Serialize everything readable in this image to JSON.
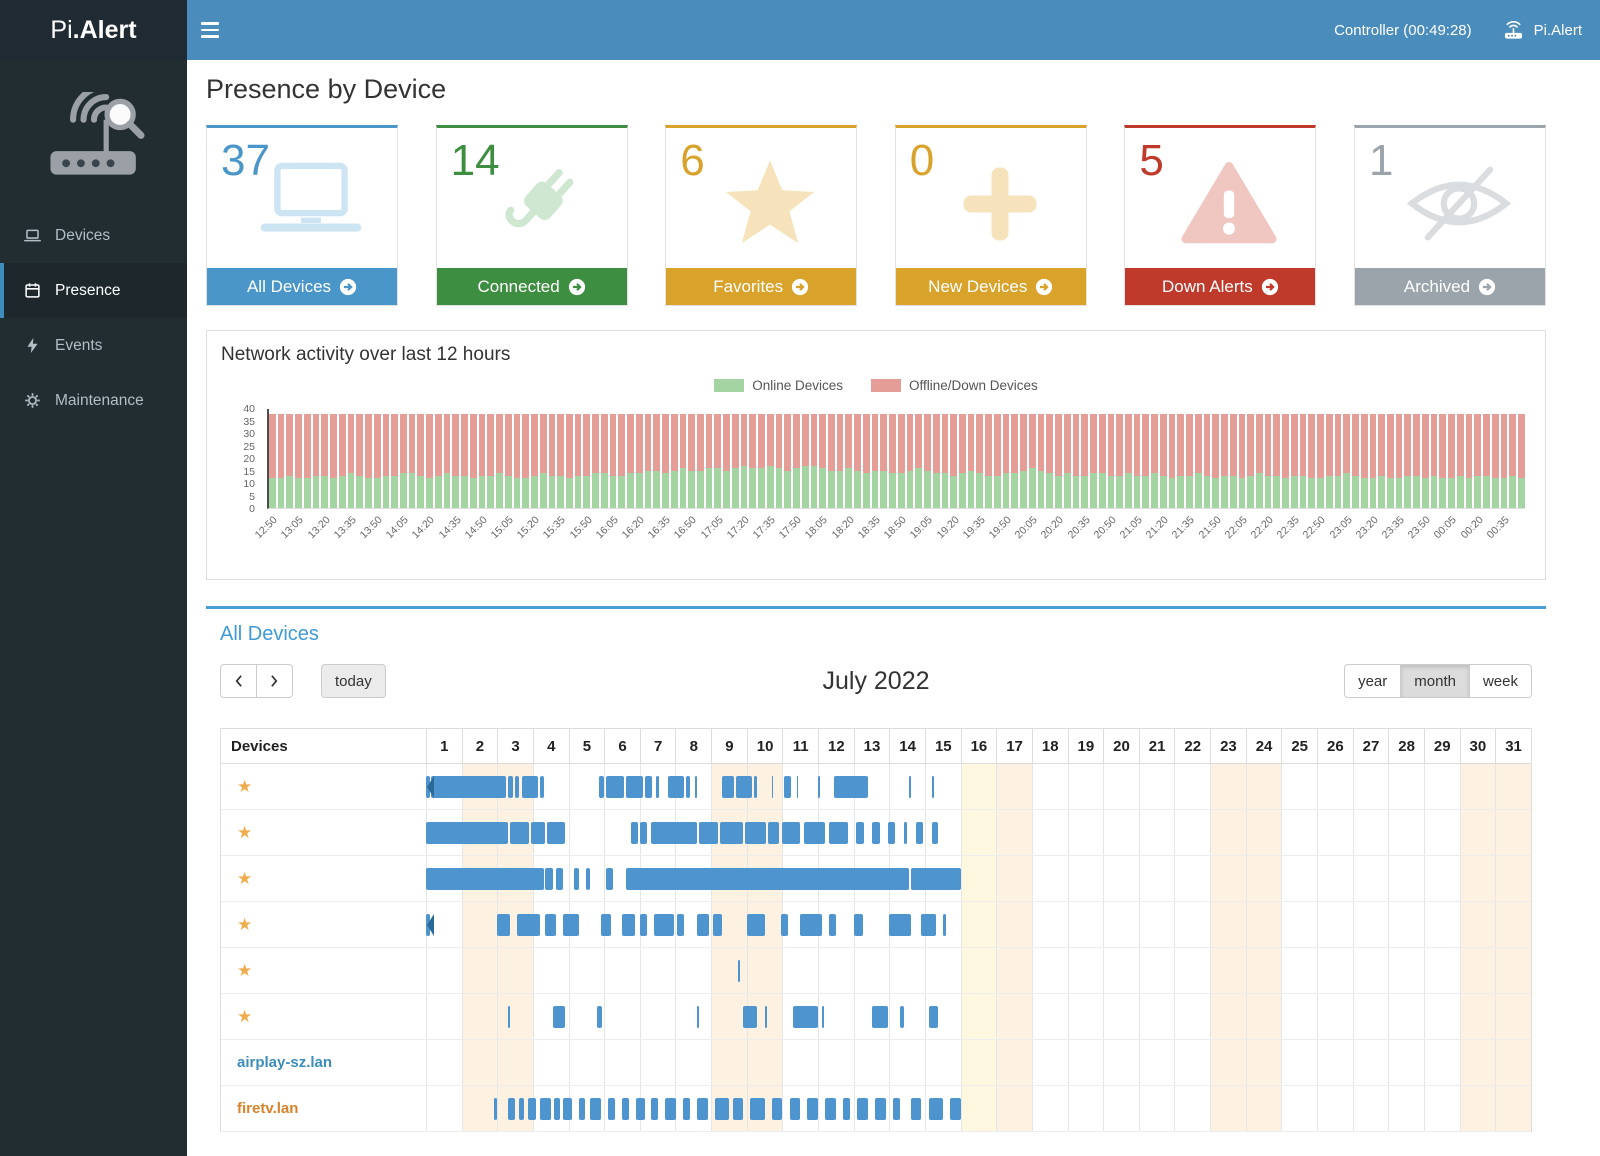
{
  "topbar": {
    "brand_prefix": "Pi",
    "brand_suffix": ".Alert",
    "controller_label": "Controller (00:49:28)",
    "user_label": "Pi.Alert"
  },
  "sidebar": {
    "items": [
      {
        "label": "Devices"
      },
      {
        "label": "Presence"
      },
      {
        "label": "Events"
      },
      {
        "label": "Maintenance"
      }
    ]
  },
  "page_title": "Presence by Device",
  "summary_cards": [
    {
      "value": "37",
      "label": "All Devices",
      "color": "#4a96c8",
      "pale": "#cde4f2"
    },
    {
      "value": "14",
      "label": "Connected",
      "color": "#3e8e41",
      "pale": "#cfe7d0"
    },
    {
      "value": "6",
      "label": "Favorites",
      "color": "#d9a22b",
      "pale": "#f6e3bb"
    },
    {
      "value": "0",
      "label": "New Devices",
      "color": "#d9a22b",
      "pale": "#f6e3bb"
    },
    {
      "value": "5",
      "label": "Down Alerts",
      "color": "#bf3a2b",
      "pale": "#efc6c0"
    },
    {
      "value": "1",
      "label": "Archived",
      "color": "#9aa4aa",
      "pale": "#d9dde0"
    }
  ],
  "activity_panel": {
    "title": "Network activity over last 12 hours"
  },
  "chart_data": {
    "type": "bar",
    "stacked": true,
    "title": "Network activity over last 12 hours",
    "series": [
      {
        "name": "Online Devices",
        "color": "#a5d4a3"
      },
      {
        "name": "Offline/Down Devices",
        "color": "#e59e97"
      }
    ],
    "ylim": [
      0,
      40
    ],
    "yticks": [
      0,
      5,
      10,
      15,
      20,
      25,
      30,
      35,
      40
    ],
    "bars_per_label": 3,
    "x_labels": [
      "12:50",
      "13:05",
      "13:20",
      "13:35",
      "13:50",
      "14:05",
      "14:20",
      "14:35",
      "14:50",
      "15:05",
      "15:20",
      "15:35",
      "15:50",
      "16:05",
      "16:20",
      "16:35",
      "16:50",
      "17:05",
      "17:20",
      "17:35",
      "17:50",
      "18:05",
      "18:20",
      "18:35",
      "18:50",
      "19:05",
      "19:20",
      "19:35",
      "19:50",
      "20:05",
      "20:20",
      "20:35",
      "20:50",
      "21:05",
      "21:20",
      "21:35",
      "21:50",
      "22:05",
      "22:20",
      "22:35",
      "22:50",
      "23:05",
      "23:20",
      "23:35",
      "23:50",
      "00:05",
      "00:20",
      "00:35"
    ],
    "total": 38,
    "online": [
      12,
      12,
      13,
      12,
      12,
      13,
      13,
      12,
      13,
      14,
      13,
      12,
      12,
      13,
      13,
      14,
      14,
      13,
      12,
      13,
      14,
      13,
      13,
      12,
      13,
      13,
      14,
      13,
      12,
      12,
      13,
      14,
      13,
      13,
      12,
      13,
      13,
      14,
      14,
      13,
      13,
      14,
      14,
      15,
      15,
      14,
      15,
      16,
      15,
      15,
      16,
      16,
      15,
      16,
      17,
      16,
      16,
      17,
      16,
      15,
      16,
      17,
      17,
      16,
      15,
      15,
      16,
      15,
      14,
      15,
      15,
      14,
      14,
      15,
      16,
      15,
      14,
      14,
      13,
      14,
      15,
      14,
      13,
      13,
      14,
      14,
      15,
      16,
      15,
      14,
      13,
      14,
      13,
      13,
      14,
      14,
      13,
      13,
      14,
      13,
      13,
      14,
      13,
      12,
      13,
      13,
      14,
      13,
      12,
      13,
      13,
      12,
      13,
      14,
      13,
      13,
      12,
      13,
      13,
      12,
      12,
      13,
      13,
      14,
      13,
      12,
      12,
      13,
      12,
      12,
      13,
      13,
      12,
      13,
      12,
      12,
      13,
      12,
      13,
      13,
      12,
      12,
      13,
      12
    ]
  },
  "presence_panel": {
    "title": "All Devices",
    "toolbar": {
      "today_label": "today",
      "title": "July 2022",
      "views": [
        "year",
        "month",
        "week"
      ],
      "active_view": "month"
    },
    "calendar": {
      "devices_header": "Devices",
      "num_days": 31,
      "weekend_days": [
        2,
        3,
        9,
        10,
        16,
        17,
        23,
        24,
        30,
        31
      ],
      "today_day": 16,
      "event_color": "#4e94cf",
      "rows": [
        {
          "favorite": true,
          "name": "",
          "start_arrow": true,
          "segments": [
            [
              1.0,
              1.12
            ],
            [
              1.15,
              3.25
            ],
            [
              3.3,
              3.45
            ],
            [
              3.5,
              3.62
            ],
            [
              3.7,
              4.15
            ],
            [
              4.2,
              4.3
            ],
            [
              5.85,
              6.0
            ],
            [
              6.05,
              6.55
            ],
            [
              6.6,
              7.1
            ],
            [
              7.15,
              7.35
            ],
            [
              7.45,
              7.55
            ],
            [
              7.8,
              8.25
            ],
            [
              8.3,
              8.4
            ],
            [
              8.55,
              8.6
            ],
            [
              9.3,
              9.65
            ],
            [
              9.7,
              10.15
            ],
            [
              10.2,
              10.28
            ],
            [
              10.7,
              10.74
            ],
            [
              11.05,
              11.25
            ],
            [
              11.4,
              11.44
            ],
            [
              12.0,
              12.06
            ],
            [
              12.45,
              13.4
            ],
            [
              14.55,
              14.6
            ],
            [
              15.2,
              15.26
            ]
          ]
        },
        {
          "favorite": true,
          "name": "",
          "segments": [
            [
              1.0,
              3.3
            ],
            [
              3.35,
              3.9
            ],
            [
              3.95,
              4.35
            ],
            [
              4.4,
              4.9
            ],
            [
              6.75,
              6.95
            ],
            [
              7.0,
              7.2
            ],
            [
              7.3,
              8.6
            ],
            [
              8.65,
              9.2
            ],
            [
              9.25,
              9.9
            ],
            [
              9.95,
              10.55
            ],
            [
              10.6,
              10.9
            ],
            [
              11.0,
              11.5
            ],
            [
              11.6,
              12.2
            ],
            [
              12.3,
              12.85
            ],
            [
              13.05,
              13.3
            ],
            [
              13.5,
              13.75
            ],
            [
              13.95,
              14.15
            ],
            [
              14.4,
              14.5
            ],
            [
              14.75,
              14.95
            ],
            [
              15.2,
              15.35
            ]
          ]
        },
        {
          "favorite": true,
          "name": "",
          "segments": [
            [
              1.0,
              4.3
            ],
            [
              4.35,
              4.55
            ],
            [
              4.65,
              4.85
            ],
            [
              5.15,
              5.3
            ],
            [
              5.5,
              5.6
            ],
            [
              6.05,
              6.25
            ],
            [
              6.6,
              14.55
            ],
            [
              14.6,
              16.0
            ]
          ]
        },
        {
          "favorite": true,
          "name": "",
          "start_arrow": true,
          "segments": [
            [
              1.0,
              1.1
            ],
            [
              3.0,
              3.35
            ],
            [
              3.55,
              4.2
            ],
            [
              4.35,
              4.65
            ],
            [
              4.85,
              5.3
            ],
            [
              5.9,
              6.2
            ],
            [
              6.5,
              6.85
            ],
            [
              7.0,
              7.2
            ],
            [
              7.4,
              7.95
            ],
            [
              8.05,
              8.25
            ],
            [
              8.6,
              8.95
            ],
            [
              9.05,
              9.3
            ],
            [
              10.0,
              10.5
            ],
            [
              10.95,
              11.15
            ],
            [
              11.5,
              12.1
            ],
            [
              12.3,
              12.5
            ],
            [
              13.0,
              13.25
            ],
            [
              14.0,
              14.6
            ],
            [
              14.9,
              15.3
            ],
            [
              15.5,
              15.6
            ]
          ]
        },
        {
          "favorite": true,
          "name": "",
          "segments": [
            [
              9.75,
              9.82
            ]
          ]
        },
        {
          "favorite": true,
          "name": "",
          "segments": [
            [
              3.3,
              3.36
            ],
            [
              4.55,
              4.9
            ],
            [
              5.8,
              5.95
            ],
            [
              8.6,
              8.66
            ],
            [
              9.9,
              10.3
            ],
            [
              10.5,
              10.56
            ],
            [
              11.3,
              12.0
            ],
            [
              12.1,
              12.16
            ],
            [
              13.5,
              13.95
            ],
            [
              14.3,
              14.4
            ],
            [
              15.1,
              15.35
            ]
          ]
        },
        {
          "favorite": false,
          "name": "airplay-sz.lan",
          "name_color": "#3c8dbc",
          "segments": []
        },
        {
          "favorite": false,
          "name": "firetv.lan",
          "name_color": "#d9822b",
          "segments": [
            [
              2.9,
              3.0
            ],
            [
              3.3,
              3.5
            ],
            [
              3.6,
              3.75
            ],
            [
              3.85,
              4.1
            ],
            [
              4.2,
              4.5
            ],
            [
              4.6,
              4.75
            ],
            [
              4.85,
              5.1
            ],
            [
              5.3,
              5.45
            ],
            [
              5.6,
              5.9
            ],
            [
              6.1,
              6.3
            ],
            [
              6.5,
              6.7
            ],
            [
              6.9,
              7.15
            ],
            [
              7.3,
              7.5
            ],
            [
              7.7,
              8.0
            ],
            [
              8.2,
              8.4
            ],
            [
              8.6,
              8.9
            ],
            [
              9.1,
              9.5
            ],
            [
              9.6,
              9.9
            ],
            [
              10.1,
              10.5
            ],
            [
              10.7,
              11.0
            ],
            [
              11.2,
              11.5
            ],
            [
              11.7,
              12.0
            ],
            [
              12.2,
              12.5
            ],
            [
              12.7,
              12.9
            ],
            [
              13.1,
              13.4
            ],
            [
              13.6,
              13.9
            ],
            [
              14.1,
              14.3
            ],
            [
              14.6,
              14.9
            ],
            [
              15.1,
              15.5
            ],
            [
              15.7,
              16.0
            ]
          ]
        }
      ]
    }
  }
}
